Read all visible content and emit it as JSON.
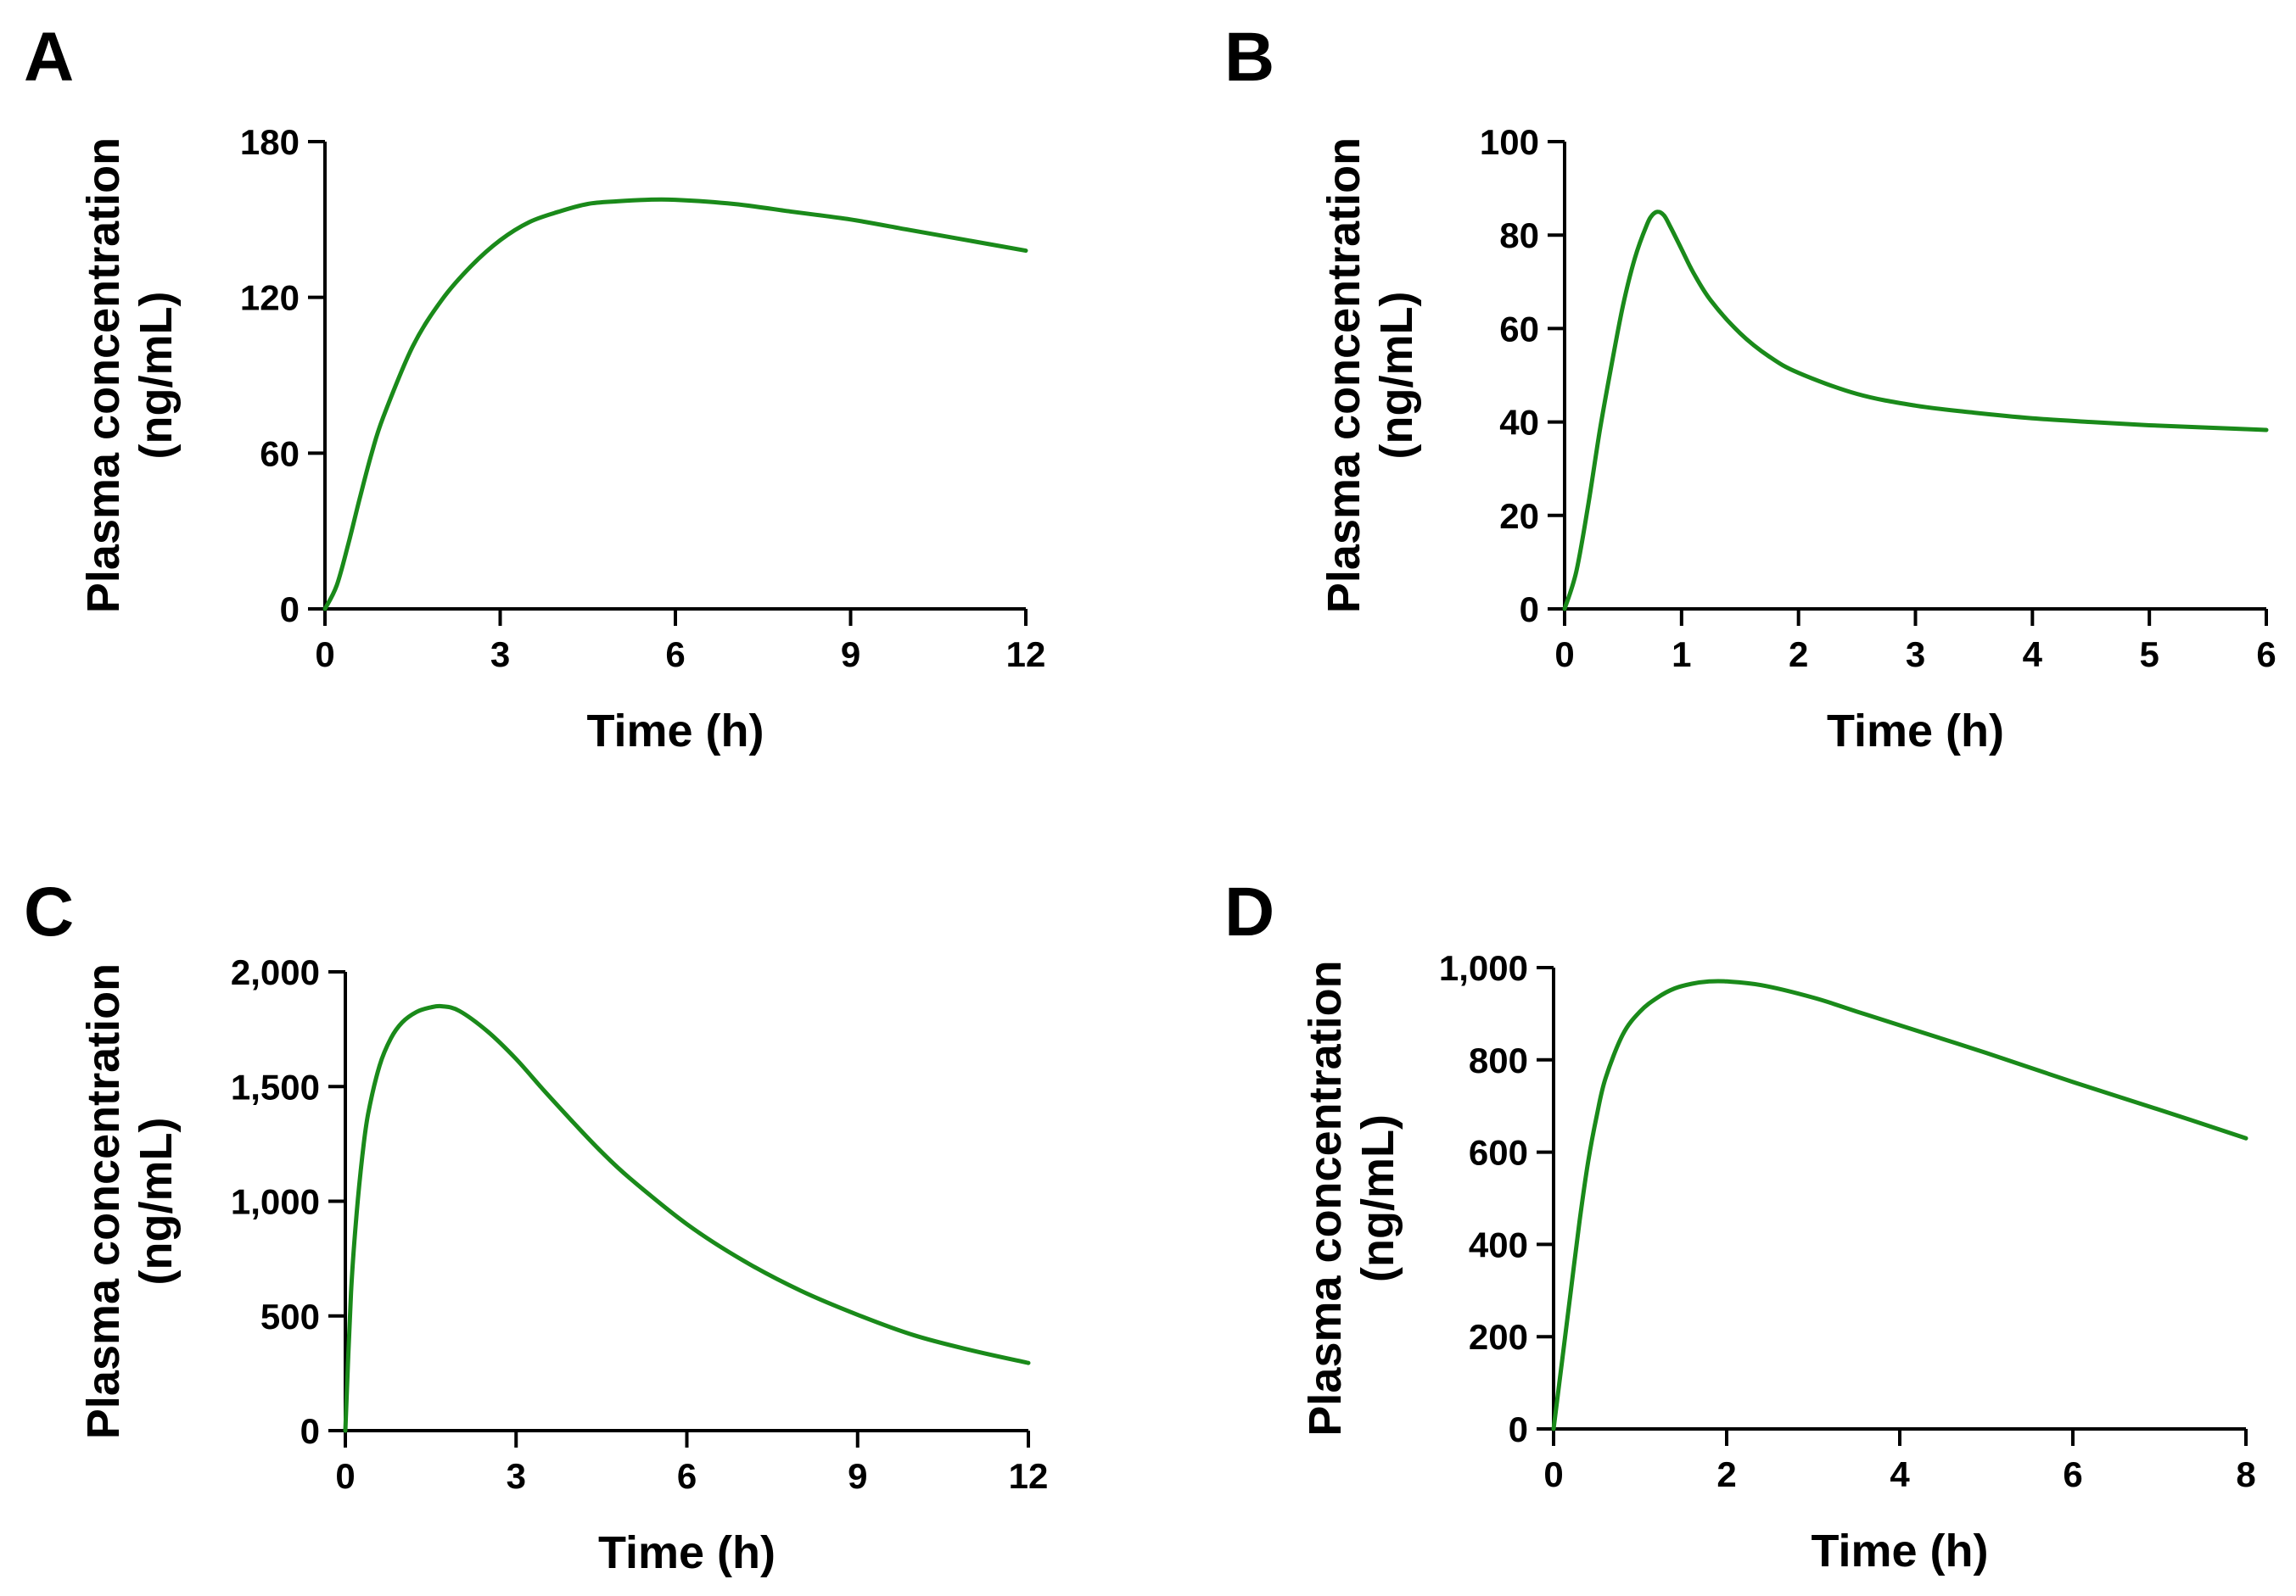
{
  "figure": {
    "background": "#ffffff",
    "line_color": "#1a8a1a"
  },
  "chart_data": [
    {
      "panel_label": "A",
      "type": "line",
      "xlabel": "Time (h)",
      "ylabel_line1": "Plasma concentration",
      "ylabel_line2": "(ng/mL)",
      "xlim": [
        0,
        12
      ],
      "ylim": [
        0,
        180
      ],
      "xticks": [
        0,
        3,
        6,
        9,
        12
      ],
      "xtick_labels": [
        "0",
        "3",
        "6",
        "9",
        "12"
      ],
      "yticks": [
        0,
        60,
        120,
        180
      ],
      "ytick_labels": [
        "0",
        "60",
        "120",
        "180"
      ],
      "series": [
        {
          "name": "Plasma concentration",
          "x": [
            0,
            0.2,
            0.4,
            0.6,
            0.8,
            1.0,
            1.5,
            2.0,
            2.5,
            3.0,
            3.5,
            4.0,
            4.5,
            5.0,
            5.5,
            6.0,
            7.0,
            8.0,
            9.0,
            10.0,
            11.0,
            12.0
          ],
          "y": [
            0,
            9,
            25,
            43,
            60,
            74,
            101,
            119,
            132,
            142,
            149,
            153,
            156,
            157,
            157.6,
            157.6,
            156,
            153,
            150,
            146,
            142,
            138
          ]
        }
      ]
    },
    {
      "panel_label": "B",
      "type": "line",
      "xlabel": "Time (h)",
      "ylabel_line1": "Plasma concentration",
      "ylabel_line2": "(ng/mL)",
      "xlim": [
        0,
        6
      ],
      "ylim": [
        0,
        100
      ],
      "xticks": [
        0,
        1,
        2,
        3,
        4,
        5,
        6
      ],
      "xtick_labels": [
        "0",
        "1",
        "2",
        "3",
        "4",
        "5",
        "6"
      ],
      "yticks": [
        0,
        20,
        40,
        60,
        80,
        100
      ],
      "ytick_labels": [
        "0",
        "20",
        "40",
        "60",
        "80",
        "100"
      ],
      "series": [
        {
          "name": "Plasma concentration",
          "x": [
            0,
            0.1,
            0.2,
            0.3,
            0.4,
            0.5,
            0.6,
            0.7,
            0.75,
            0.8,
            0.85,
            0.9,
            1.0,
            1.1,
            1.25,
            1.5,
            1.75,
            2.0,
            2.5,
            3.0,
            3.5,
            4.0,
            4.5,
            5.0,
            5.5,
            6.0
          ],
          "y": [
            0,
            8,
            22,
            38,
            52,
            65,
            75,
            82,
            84.3,
            85,
            84.2,
            82,
            77,
            72,
            66,
            59,
            54,
            50.5,
            46,
            43.5,
            42,
            40.8,
            40,
            39.3,
            38.8,
            38.3
          ]
        }
      ]
    },
    {
      "panel_label": "C",
      "type": "line",
      "xlabel": "Time (h)",
      "ylabel_line1": "Plasma concentration",
      "ylabel_line2": "(ng/mL)",
      "xlim": [
        0,
        12
      ],
      "ylim": [
        0,
        2000
      ],
      "xticks": [
        0,
        3,
        6,
        9,
        12
      ],
      "xtick_labels": [
        "0",
        "3",
        "6",
        "9",
        "12"
      ],
      "yticks": [
        0,
        500,
        1000,
        1500,
        2000
      ],
      "ytick_labels": [
        "0",
        "500",
        "1,000",
        "1,500",
        "2,000"
      ],
      "series": [
        {
          "name": "Plasma concentration",
          "x": [
            0,
            0.1,
            0.2,
            0.3,
            0.4,
            0.6,
            0.8,
            1.0,
            1.25,
            1.5,
            1.7,
            2.0,
            2.5,
            3.0,
            3.5,
            4.0,
            4.5,
            5.0,
            6.0,
            7.0,
            8.0,
            9.0,
            10.0,
            11.0,
            12.0
          ],
          "y": [
            0,
            600,
            950,
            1200,
            1380,
            1590,
            1710,
            1780,
            1825,
            1845,
            1850,
            1830,
            1740,
            1620,
            1480,
            1345,
            1215,
            1100,
            900,
            740,
            610,
            505,
            415,
            350,
            295
          ]
        }
      ]
    },
    {
      "panel_label": "D",
      "type": "line",
      "xlabel": "Time (h)",
      "ylabel_line1": "Plasma concentration",
      "ylabel_line2": "(ng/mL)",
      "xlim": [
        0,
        8
      ],
      "ylim": [
        0,
        1000
      ],
      "xticks": [
        0,
        2,
        4,
        6,
        8
      ],
      "xtick_labels": [
        "0",
        "2",
        "4",
        "6",
        "8"
      ],
      "yticks": [
        0,
        200,
        400,
        600,
        800,
        1000
      ],
      "ytick_labels": [
        "0",
        "200",
        "400",
        "600",
        "800",
        "1,000"
      ],
      "series": [
        {
          "name": "Plasma concentration",
          "x": [
            0,
            0.1,
            0.2,
            0.3,
            0.4,
            0.5,
            0.6,
            0.8,
            1.0,
            1.2,
            1.4,
            1.6,
            1.8,
            2.0,
            2.4,
            3.0,
            3.5,
            4.0,
            5.0,
            6.0,
            7.0,
            8.0
          ],
          "y": [
            0,
            150,
            300,
            450,
            580,
            680,
            760,
            855,
            905,
            935,
            955,
            965,
            970,
            970,
            962,
            935,
            905,
            875,
            815,
            752,
            692,
            630
          ]
        }
      ]
    }
  ]
}
